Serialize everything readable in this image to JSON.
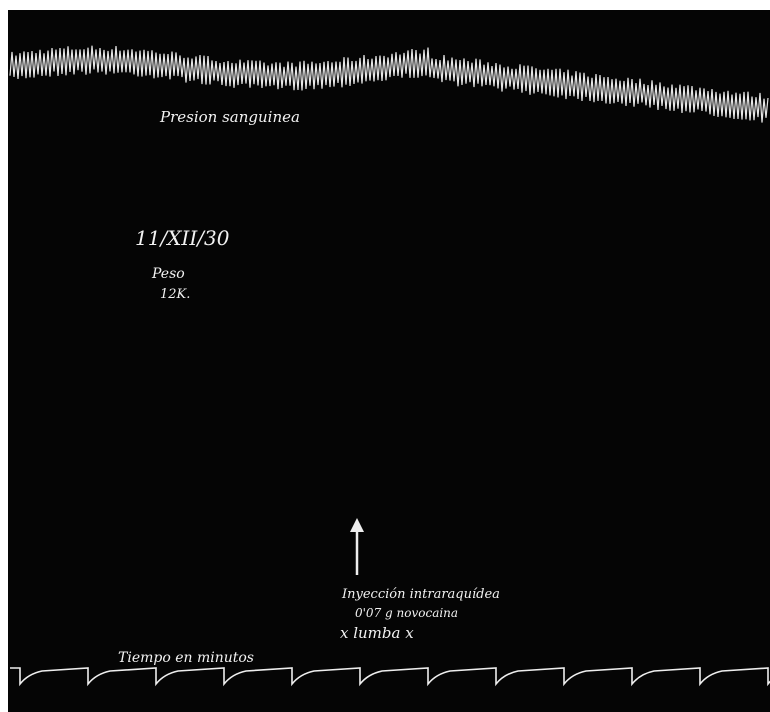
{
  "header": {
    "trace_label": "Presion sanguinea"
  },
  "notes": {
    "date": "11/XII/30",
    "weight_label": "Peso",
    "weight": "12K."
  },
  "injection": {
    "line1": "Inyección intraraquídea",
    "line2": "0'07 g novocaina",
    "line3": "x lumba x"
  },
  "footer": {
    "time_label": "Tiempo en minutos"
  }
}
